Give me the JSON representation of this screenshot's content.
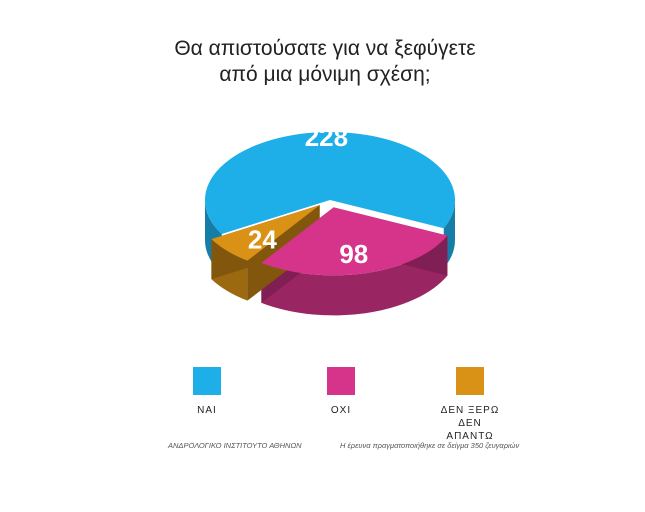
{
  "chart_data": {
    "type": "pie3d",
    "title": "Θα απιστούσατε για να ξεφύγετε από μια μόνιμη σχέση;",
    "categories": [
      "ΝΑΙ",
      "ΟΧΙ",
      "ΔΕΝ ΞΕΡΩ ΔΕΝ ΑΠΑΝΤΩ"
    ],
    "values": [
      228,
      98,
      24
    ],
    "colors": [
      "#1eaee8",
      "#d6338a",
      "#d99116"
    ],
    "source": "ΑΝΔΡΟΛΟΓΙΚΟ ΙΝΣΤΙΤΟΥΤΟ ΑΘΗΝΩΝ",
    "note": "Η έρευνα πραγματοποιήθηκε σε δείγμα 350 ζευγαριών"
  }
}
